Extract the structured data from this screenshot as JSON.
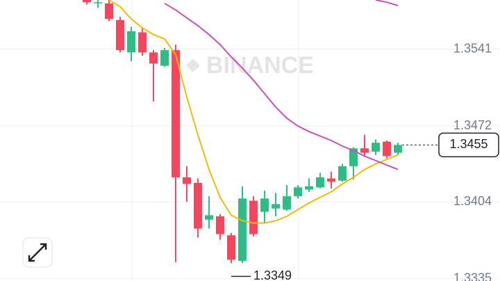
{
  "chart_data": {
    "type": "candlestick",
    "watermark": "BINANCE",
    "ylim": [
      1.3333,
      1.3585
    ],
    "yticks": [
      1.3335,
      1.3404,
      1.3472,
      1.3541
    ],
    "grid": true,
    "up_color": "#2ebd85",
    "down_color": "#f6465d",
    "open": [
      1.3585,
      1.3582,
      1.3582,
      1.3567,
      1.3538,
      1.3556,
      1.3538,
      1.3526,
      1.354,
      1.3426,
      1.3421,
      1.3388,
      1.3391,
      1.3374,
      1.3351,
      1.3405,
      1.3395,
      1.3398,
      1.3397,
      1.3409,
      1.3415,
      1.3417,
      1.3425,
      1.3423,
      1.3436,
      1.3452,
      1.3449,
      1.3458,
      1.3448
    ],
    "high": [
      1.3587,
      1.3586,
      1.3585,
      1.357,
      1.3561,
      1.356,
      1.354,
      1.3542,
      1.3545,
      1.3436,
      1.3425,
      1.3409,
      1.3393,
      1.3376,
      1.3418,
      1.3409,
      1.3414,
      1.3412,
      1.3419,
      1.3419,
      1.3425,
      1.343,
      1.3431,
      1.3438,
      1.3453,
      1.3464,
      1.346,
      1.3459,
      1.3457
    ],
    "low": [
      1.3581,
      1.3578,
      1.3566,
      1.3538,
      1.353,
      1.3535,
      1.3494,
      1.3525,
      1.335,
      1.3404,
      1.3372,
      1.338,
      1.337,
      1.3349,
      1.3349,
      1.3373,
      1.3385,
      1.3391,
      1.3396,
      1.3407,
      1.3413,
      1.3416,
      1.3416,
      1.3422,
      1.3424,
      1.3445,
      1.3446,
      1.3443,
      1.3446
    ],
    "close": [
      1.3583,
      1.3583,
      1.3568,
      1.354,
      1.3557,
      1.3538,
      1.3528,
      1.354,
      1.3426,
      1.342,
      1.338,
      1.3392,
      1.3375,
      1.3352,
      1.3407,
      1.3375,
      1.3407,
      1.3402,
      1.3409,
      1.3417,
      1.3418,
      1.3426,
      1.3422,
      1.3436,
      1.3452,
      1.3448,
      1.3457,
      1.3445,
      1.3455
    ],
    "series": [
      {
        "color": "#f0b90b",
        "values": [
          null,
          null,
          1.3585,
          1.3579,
          1.3568,
          1.356,
          1.3554,
          1.355,
          1.3536,
          1.3498,
          1.3464,
          1.3433,
          1.3408,
          1.3392,
          1.3387,
          1.3385,
          1.3385,
          1.3387,
          1.3391,
          1.3397,
          1.3403,
          1.3408,
          1.3413,
          1.342,
          1.3426,
          1.3433,
          1.3438,
          1.3442,
          1.3446
        ]
      },
      {
        "color": "#c94fbd",
        "values": [
          null,
          null,
          null,
          null,
          null,
          null,
          null,
          1.3582,
          1.3576,
          1.3569,
          1.3562,
          1.3554,
          1.3545,
          1.3534,
          1.3524,
          1.3513,
          1.3501,
          1.3489,
          1.3479,
          1.3472,
          1.3467,
          1.3463,
          1.3459,
          1.3454,
          1.345,
          1.3445,
          1.3441,
          1.3437,
          1.3433
        ]
      },
      {
        "color": "#c94fbd",
        "values": [
          null,
          null,
          null,
          null,
          null,
          null,
          null,
          null,
          null,
          null,
          null,
          null,
          null,
          null,
          null,
          null,
          null,
          null,
          null,
          null,
          null,
          null,
          null,
          null,
          null,
          null,
          1.3585,
          1.3583,
          1.358
        ]
      }
    ],
    "current_price": 1.3455,
    "low_annotation": {
      "value": 1.3349,
      "label": "1.3349"
    }
  }
}
